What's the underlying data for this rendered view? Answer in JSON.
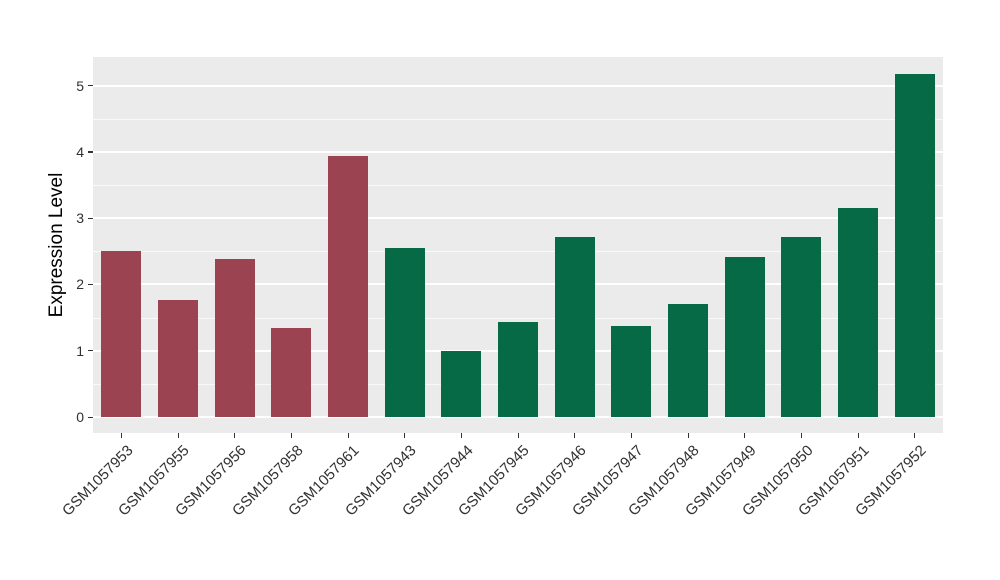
{
  "chart_data": {
    "type": "bar",
    "title": "",
    "xlabel": "",
    "ylabel": "Expression Level",
    "categories": [
      "GSM1057953",
      "GSM1057955",
      "GSM1057956",
      "GSM1057958",
      "GSM1057961",
      "GSM1057943",
      "GSM1057944",
      "GSM1057945",
      "GSM1057946",
      "GSM1057947",
      "GSM1057948",
      "GSM1057949",
      "GSM1057950",
      "GSM1057951",
      "GSM1057952"
    ],
    "values": [
      2.5,
      1.76,
      2.38,
      1.34,
      3.94,
      2.55,
      1.0,
      1.43,
      2.71,
      1.37,
      1.71,
      2.41,
      2.71,
      3.15,
      5.18
    ],
    "bar_colors": [
      "#9C4351",
      "#9C4351",
      "#9C4351",
      "#9C4351",
      "#9C4351",
      "#066A47",
      "#066A47",
      "#066A47",
      "#066A47",
      "#066A47",
      "#066A47",
      "#066A47",
      "#066A47",
      "#066A47",
      "#066A47"
    ],
    "group_colors": {
      "group1": "#9C4351",
      "group2": "#066A47"
    },
    "yticks": [
      0,
      1,
      2,
      3,
      4,
      5
    ],
    "yticks_minor": [
      0.5,
      1.5,
      2.5,
      3.5,
      4.5
    ],
    "ylim": [
      0,
      5.43
    ],
    "panel_background": "#EBEBEB",
    "grid_color": "#FFFFFF",
    "legend": "none",
    "grid": "major and minor horizontal white lines on gray panel"
  }
}
